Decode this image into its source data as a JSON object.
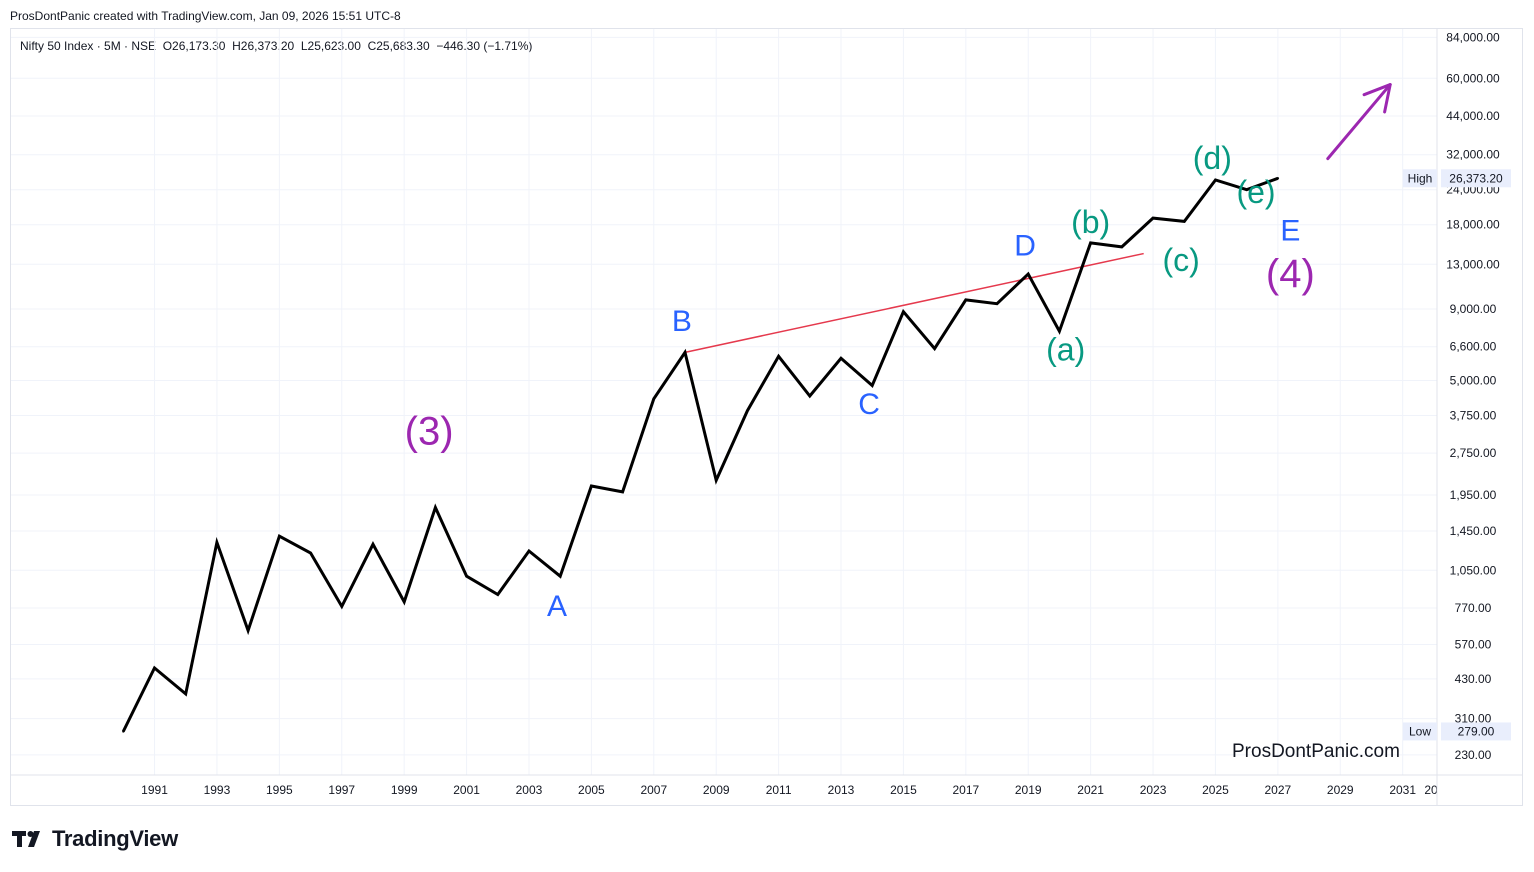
{
  "header": {
    "credit": "ProsDontPanic created with TradingView.com, Jan 09, 2026 15:51 UTC-8"
  },
  "legend": {
    "symbol": "Nifty 50 Index · 5M · NSE",
    "open": "O26,173.30",
    "high": "H26,373.20",
    "low": "L25,623.00",
    "close": "C25,683.30",
    "change": "−446.30 (−1.71%)"
  },
  "colors": {
    "line": "#000000",
    "trendline": "#e5394d",
    "label_blue": "#2962ff",
    "label_teal": "#089981",
    "label_purple": "#9c27b0",
    "grid": "#f0f3fa",
    "axis_text": "#131722"
  },
  "chart_data": {
    "type": "line",
    "x": [
      1990,
      1991,
      1992,
      1993,
      1994,
      1995,
      1996,
      1997,
      1998,
      1999,
      2000,
      2001,
      2002,
      2003,
      2004,
      2005,
      2006,
      2007,
      2008,
      2009,
      2010,
      2011,
      2012,
      2013,
      2014,
      2015,
      2016,
      2017,
      2018,
      2019,
      2020,
      2021,
      2022,
      2023,
      2024,
      2025,
      2026,
      2027
    ],
    "series": [
      {
        "values": [
          279,
          470,
          380,
          1320,
          640,
          1390,
          1210,
          780,
          1300,
          810,
          1760,
          1000,
          860,
          1230,
          1000,
          2100,
          2000,
          4300,
          6300,
          2200,
          3900,
          6100,
          4400,
          6000,
          4800,
          8800,
          6500,
          9700,
          9400,
          12000,
          7500,
          15500,
          15000,
          19000,
          18500,
          26000,
          24000,
          26373.2
        ]
      }
    ],
    "y_scale": "log",
    "ylim": [
      195,
      90000
    ],
    "xlim": [
      1986.4,
      2032.1
    ],
    "yticks": [
      "84,000.00",
      "60,000.00",
      "44,000.00",
      "32,000.00",
      "24,000.00",
      "18,000.00",
      "13,000.00",
      "9,000.00",
      "6,600.00",
      "5,000.00",
      "3,750.00",
      "2,750.00",
      "1,950.00",
      "1,450.00",
      "1,050.00",
      "770.00",
      "570.00",
      "430.00",
      "310.00",
      "230.00"
    ],
    "ytick_values": [
      84000,
      60000,
      44000,
      32000,
      24000,
      18000,
      13000,
      9000,
      6600,
      5000,
      3750,
      2750,
      1950,
      1450,
      1050,
      770,
      570,
      430,
      310,
      230
    ],
    "xticks": [
      "1991",
      "1993",
      "1995",
      "1997",
      "1999",
      "2001",
      "2003",
      "2005",
      "2007",
      "2009",
      "2011",
      "2013",
      "2015",
      "2017",
      "2019",
      "2021",
      "2023",
      "2025",
      "2027",
      "2029",
      "2031",
      "20"
    ],
    "xtick_values": [
      1991,
      1993,
      1995,
      1997,
      1999,
      2001,
      2003,
      2005,
      2007,
      2009,
      2011,
      2013,
      2015,
      2017,
      2019,
      2021,
      2023,
      2025,
      2027,
      2029,
      2031,
      2033
    ],
    "high_marker": {
      "label": "High",
      "value_text": "26,373.20",
      "value": 26373.2
    },
    "low_marker": {
      "label": "Low",
      "value_text": "279.00",
      "value": 279
    },
    "trendline": {
      "x1": 2008,
      "y1": 6300,
      "x2": 2022.7,
      "y2": 14200
    },
    "annotations": [
      {
        "text": "(3)",
        "x": 1999.8,
        "y": 2950,
        "color": "label_purple",
        "size": 40
      },
      {
        "text": "A",
        "x": 2003.9,
        "y": 720,
        "color": "label_blue",
        "size": 30
      },
      {
        "text": "B",
        "x": 2007.9,
        "y": 7500,
        "color": "label_blue",
        "size": 30
      },
      {
        "text": "C",
        "x": 2013.9,
        "y": 3800,
        "color": "label_blue",
        "size": 30
      },
      {
        "text": "D",
        "x": 2018.9,
        "y": 14000,
        "color": "label_blue",
        "size": 30
      },
      {
        "text": "E",
        "x": 2027.4,
        "y": 15800,
        "color": "label_blue",
        "size": 30
      },
      {
        "text": "(4)",
        "x": 2027.4,
        "y": 10800,
        "color": "label_purple",
        "size": 40
      },
      {
        "text": "(a)",
        "x": 2020.2,
        "y": 5900,
        "color": "label_teal",
        "size": 32
      },
      {
        "text": "(b)",
        "x": 2021.0,
        "y": 16800,
        "color": "label_teal",
        "size": 32
      },
      {
        "text": "(c)",
        "x": 2023.9,
        "y": 12300,
        "color": "label_teal",
        "size": 32
      },
      {
        "text": "(d)",
        "x": 2024.9,
        "y": 28500,
        "color": "label_teal",
        "size": 32
      },
      {
        "text": "(e)",
        "x": 2026.3,
        "y": 21500,
        "color": "label_teal",
        "size": 32
      }
    ],
    "arrow": {
      "x1": 2028.6,
      "y1": 31000,
      "x2": 2030.6,
      "y2": 57000,
      "color": "label_purple"
    }
  },
  "footer": {
    "brand": "TradingView",
    "watermark": "ProsDontPanic.com"
  }
}
